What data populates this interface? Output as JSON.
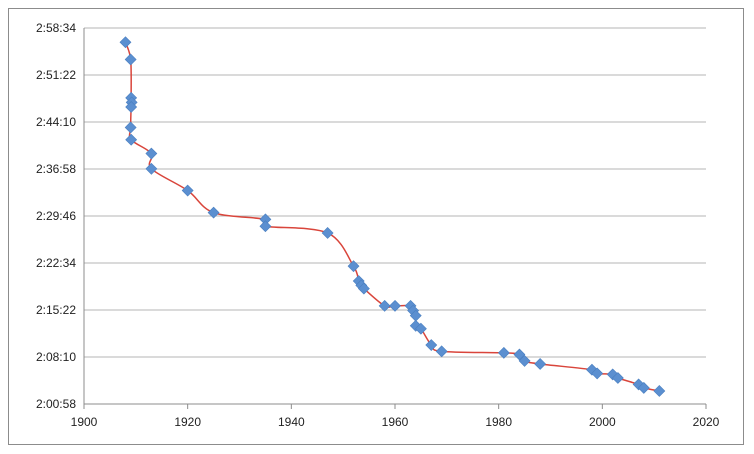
{
  "chart_data": {
    "type": "scatter",
    "title": "",
    "xlabel": "",
    "ylabel": "",
    "xlim": [
      1900,
      2020
    ],
    "ylim_seconds": [
      7258,
      10714
    ],
    "x_ticks": [
      1900,
      1920,
      1940,
      1960,
      1980,
      2000,
      2020
    ],
    "x_tick_labels": [
      "1900",
      "1920",
      "1940",
      "1960",
      "1980",
      "2000",
      "2020"
    ],
    "y_ticks_seconds": [
      7258,
      7690,
      8122,
      8554,
      8986,
      9418,
      9850,
      10282,
      10714
    ],
    "y_tick_labels": [
      "2:00:58",
      "2:08:10",
      "2:15:22",
      "2:22:34",
      "2:29:46",
      "2:36:58",
      "2:44:10",
      "2:51:22",
      "2:58:34"
    ],
    "grid": "horizontal",
    "legend": "none",
    "colors": {
      "marker": "#5b8fd0",
      "line": "#d9453b",
      "grid": "#b5b5b5"
    },
    "points": [
      {
        "x": 1908.0,
        "y": 10583
      },
      {
        "x": 1909.0,
        "y": 10425
      },
      {
        "x": 1909.1,
        "y": 10072
      },
      {
        "x": 1909.2,
        "y": 10030
      },
      {
        "x": 1909.1,
        "y": 9988
      },
      {
        "x": 1909.0,
        "y": 9800
      },
      {
        "x": 1909.1,
        "y": 9687
      },
      {
        "x": 1913.0,
        "y": 9560
      },
      {
        "x": 1913.0,
        "y": 9420
      },
      {
        "x": 1920.0,
        "y": 9220
      },
      {
        "x": 1925.0,
        "y": 9017
      },
      {
        "x": 1935.0,
        "y": 8955
      },
      {
        "x": 1935.0,
        "y": 8892
      },
      {
        "x": 1947.0,
        "y": 8830
      },
      {
        "x": 1952.0,
        "y": 8525
      },
      {
        "x": 1953.0,
        "y": 8388
      },
      {
        "x": 1953.5,
        "y": 8348
      },
      {
        "x": 1954.0,
        "y": 8319
      },
      {
        "x": 1958.0,
        "y": 8160
      },
      {
        "x": 1960.0,
        "y": 8160
      },
      {
        "x": 1963.0,
        "y": 8160
      },
      {
        "x": 1963.5,
        "y": 8116
      },
      {
        "x": 1964.0,
        "y": 8070
      },
      {
        "x": 1964.0,
        "y": 7977
      },
      {
        "x": 1965.0,
        "y": 7950
      },
      {
        "x": 1967.0,
        "y": 7800
      },
      {
        "x": 1969.0,
        "y": 7742
      },
      {
        "x": 1981.0,
        "y": 7728
      },
      {
        "x": 1984.0,
        "y": 7713
      },
      {
        "x": 1985.0,
        "y": 7654
      },
      {
        "x": 1988.0,
        "y": 7626
      },
      {
        "x": 1998.0,
        "y": 7573
      },
      {
        "x": 1999.0,
        "y": 7539
      },
      {
        "x": 2002.0,
        "y": 7530
      },
      {
        "x": 2003.0,
        "y": 7497
      },
      {
        "x": 2007.0,
        "y": 7438
      },
      {
        "x": 2008.0,
        "y": 7406
      },
      {
        "x": 2011.0,
        "y": 7378
      }
    ]
  }
}
